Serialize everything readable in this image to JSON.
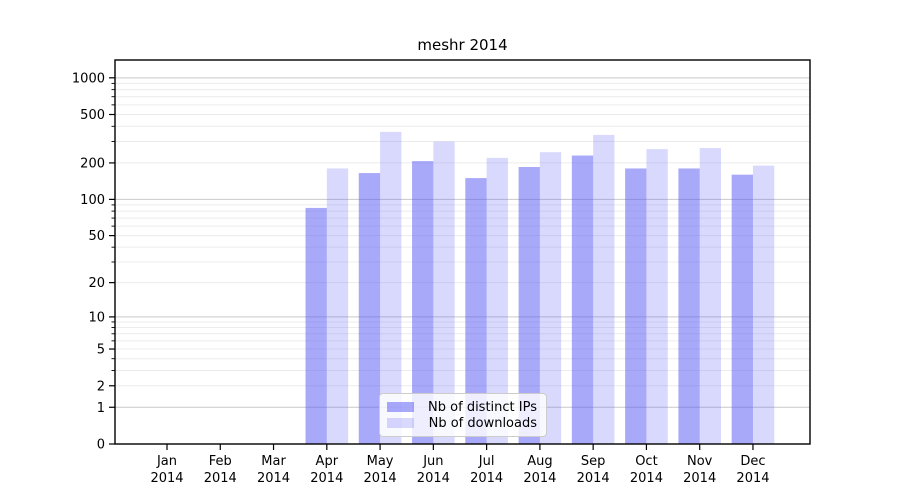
{
  "chart_data": {
    "type": "bar",
    "title": "meshr 2014",
    "xlabel": "",
    "ylabel": "",
    "scale": "log1p",
    "ylim": [
      0,
      1400
    ],
    "grid": true,
    "legend_position": "bottom-center",
    "categories": [
      "Jan 2014",
      "Feb 2014",
      "Mar 2014",
      "Apr 2014",
      "May 2014",
      "Jun 2014",
      "Jul 2014",
      "Aug 2014",
      "Sep 2014",
      "Oct 2014",
      "Nov 2014",
      "Dec 2014"
    ],
    "yticks": [
      0,
      1,
      2,
      5,
      10,
      20,
      50,
      100,
      200,
      500,
      1000
    ],
    "minor_gridlines": [
      3,
      4,
      6,
      7,
      8,
      9,
      30,
      40,
      60,
      70,
      80,
      90,
      300,
      400,
      600,
      700,
      800,
      900
    ],
    "decade_gridlines": [
      1,
      10,
      100,
      1000
    ],
    "series": [
      {
        "name": "Nb of distinct IPs",
        "key": "distinct-ips",
        "color": "rgba(90,90,246,0.52)",
        "values": [
          0,
          0,
          0,
          85,
          165,
          207,
          150,
          185,
          230,
          180,
          180,
          160
        ]
      },
      {
        "name": "Nb of downloads",
        "key": "downloads",
        "color": "rgba(90,90,246,0.23)",
        "values": [
          0,
          0,
          0,
          180,
          360,
          300,
          220,
          245,
          340,
          260,
          265,
          190
        ]
      }
    ],
    "colors": {
      "bar_base": "#5a5af6",
      "grid_minor": "#ececec",
      "grid_decade": "#c9c9c9",
      "spine": "#000000",
      "legend_border": "#cccccc"
    }
  }
}
